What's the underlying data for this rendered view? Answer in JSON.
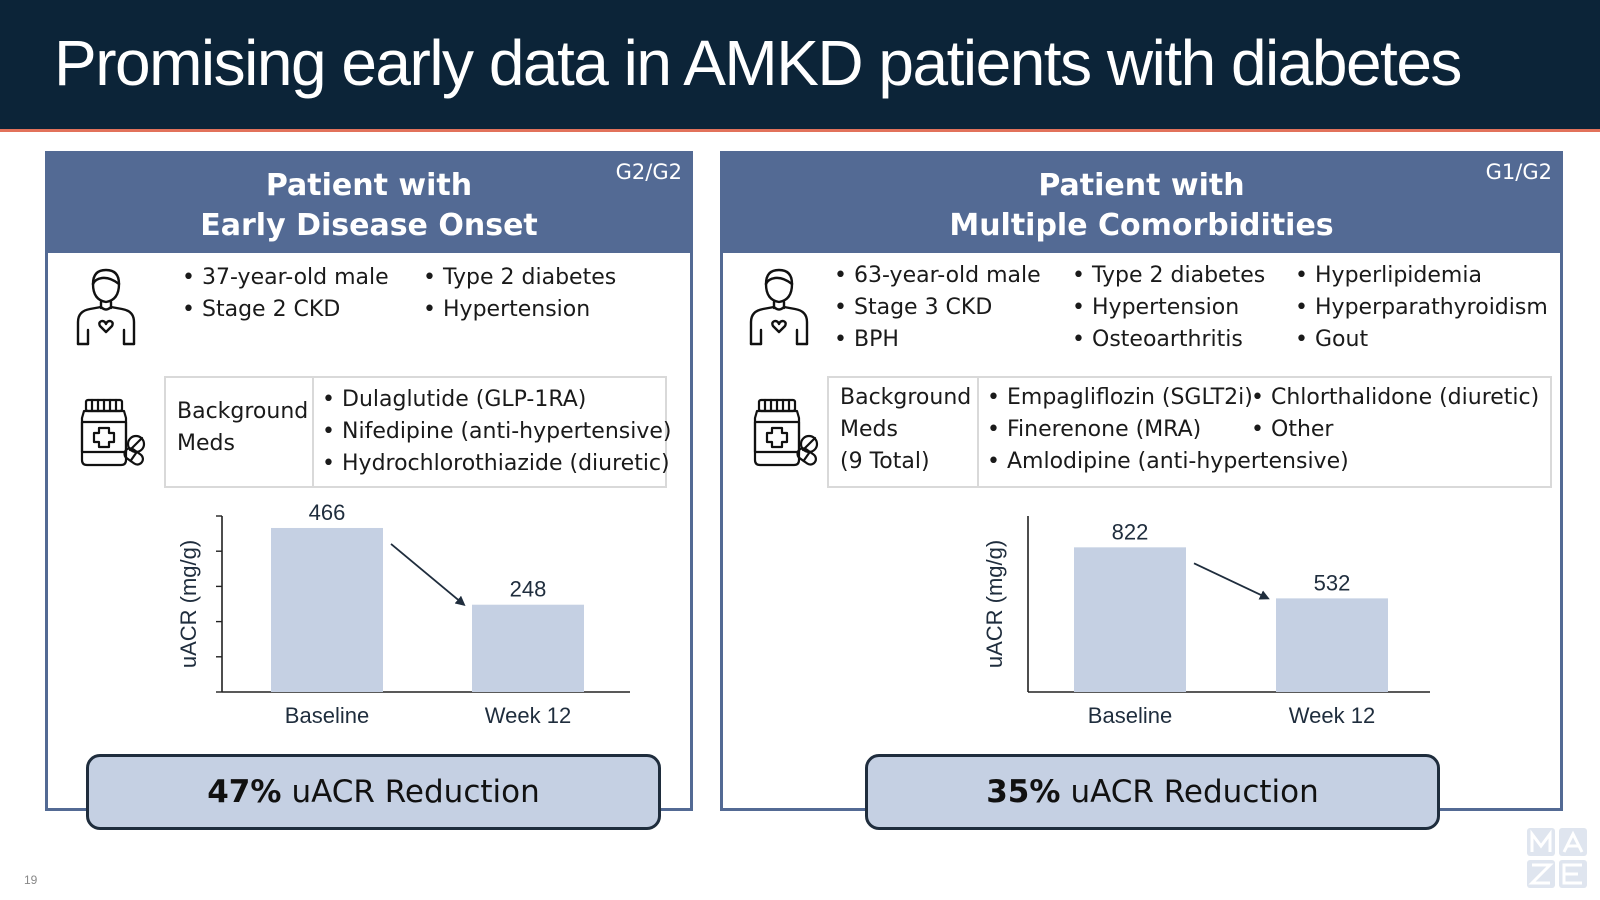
{
  "title": "Promising early data in AMKD patients with diabetes",
  "page_number": "19",
  "colors": {
    "header_bg": "#0c2438",
    "header_accent_line": "#e2725b",
    "panel_blue": "#536a94",
    "bar_fill": "#c5d0e3",
    "reduction_fill": "#c5d0e3"
  },
  "panels": [
    {
      "title_line1": "Patient with",
      "title_line2": "Early Disease Onset",
      "grade": "G2/G2",
      "person_icon": "patient-heart-icon",
      "meds_icon": "medicine-bottle-pills-icon",
      "profile": {
        "col1": [
          "37-year-old male",
          "Stage 2 CKD"
        ],
        "col2": [
          "Type 2 diabetes",
          "Hypertension"
        ]
      },
      "meds_label_line1": "Background",
      "meds_label_line2": "Meds",
      "meds": {
        "col1": [
          "Dulaglutide (GLP-1RA)",
          "Nifedipine (anti-hypertensive)",
          "Hydrochlorothiazide (diuretic)"
        ]
      },
      "reduction_value": "47%",
      "reduction_text": "uACR Reduction"
    },
    {
      "title_line1": "Patient with",
      "title_line2": "Multiple Comorbidities",
      "grade": "G1/G2",
      "person_icon": "patient-heart-icon",
      "meds_icon": "medicine-bottle-pills-icon",
      "profile": {
        "col1": [
          "63-year-old male",
          "Stage 3 CKD",
          "BPH"
        ],
        "col2": [
          "Type 2 diabetes",
          "Hypertension",
          "Osteoarthritis"
        ],
        "col3": [
          "Hyperlipidemia",
          "Hyperparathyroidism",
          "Gout"
        ]
      },
      "meds_label_line1": "Background",
      "meds_label_line2": "Meds",
      "meds_label_line3": "(9 Total)",
      "meds": {
        "col1": [
          "Empagliflozin (SGLT2i)",
          "Finerenone (MRA)",
          "Amlodipine (anti-hypertensive)"
        ],
        "col2": [
          "Chlorthalidone (diuretic)",
          "Other"
        ]
      },
      "reduction_value": "35%",
      "reduction_text": "uACR Reduction"
    }
  ],
  "chart_data": [
    {
      "type": "bar",
      "categories": [
        "Baseline",
        "Week 12"
      ],
      "values": [
        466,
        248
      ],
      "data_labels": [
        "466",
        "248"
      ],
      "ylabel": "uACR (mg/g)",
      "ylim": [
        0,
        500
      ],
      "yticks_labeled": false,
      "grid": false,
      "legend": "none",
      "annotation": "arrow-down-from-baseline-to-week-12"
    },
    {
      "type": "bar",
      "categories": [
        "Baseline",
        "Week 12"
      ],
      "values": [
        822,
        532
      ],
      "data_labels": [
        "822",
        "532"
      ],
      "ylabel": "uACR (mg/g)",
      "ylim": [
        0,
        1000
      ],
      "yticks_labeled": false,
      "grid": false,
      "legend": "none",
      "annotation": "arrow-down-from-baseline-to-week-12"
    }
  ]
}
